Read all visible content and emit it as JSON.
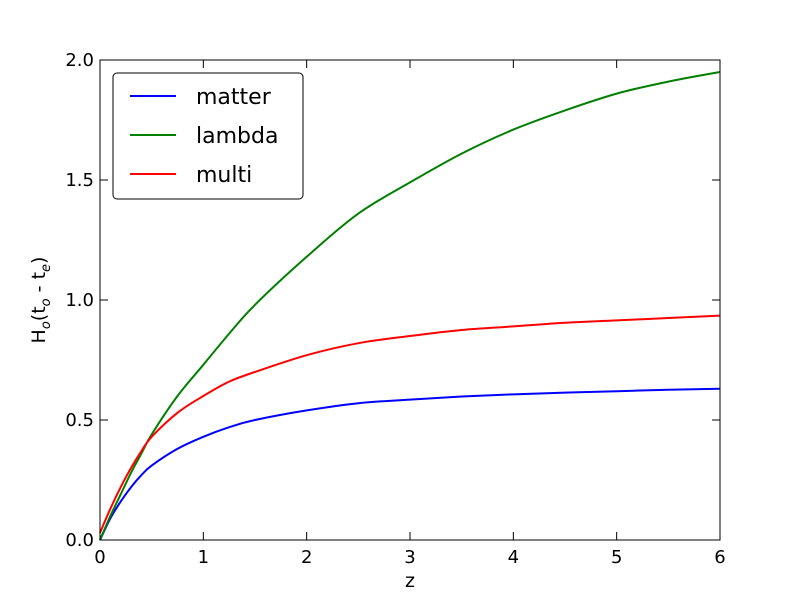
{
  "chart_data": {
    "type": "line",
    "title": "",
    "xlabel": "z",
    "ylabel": {
      "main": "H",
      "sub_main": "o",
      "open": "(t",
      "sub_1": "o",
      "mid": " - t",
      "sub_2": "e",
      "close": ")"
    },
    "xlim": [
      0,
      6
    ],
    "ylim": [
      0,
      2.0
    ],
    "xticks": [
      0,
      1,
      2,
      3,
      4,
      5,
      6
    ],
    "xtick_labels": [
      "0",
      "1",
      "2",
      "3",
      "4",
      "5",
      "6"
    ],
    "yticks": [
      0,
      0.5,
      1.0,
      1.5,
      2.0
    ],
    "ytick_labels": [
      "0.0",
      "0.5",
      "1.0",
      "1.5",
      "2.0"
    ],
    "grid": false,
    "legend_position": "top-left",
    "x": [
      0,
      0.1,
      0.2,
      0.3,
      0.4,
      0.5,
      0.75,
      1,
      1.25,
      1.5,
      2,
      2.5,
      3,
      3.5,
      4,
      4.5,
      5,
      5.5,
      6
    ],
    "series": [
      {
        "name": "matter",
        "color": "#0000ff",
        "values": [
          0,
          0.09,
          0.16,
          0.22,
          0.27,
          0.31,
          0.38,
          0.43,
          0.47,
          0.5,
          0.54,
          0.57,
          0.585,
          0.598,
          0.607,
          0.614,
          0.62,
          0.626,
          0.63
        ]
      },
      {
        "name": "lambda",
        "color": "#008000",
        "values": [
          0,
          0.1,
          0.19,
          0.28,
          0.36,
          0.44,
          0.6,
          0.73,
          0.86,
          0.98,
          1.18,
          1.36,
          1.49,
          1.61,
          1.71,
          1.79,
          1.86,
          1.91,
          1.95
        ]
      },
      {
        "name": "multi",
        "color": "#ff0000",
        "values": [
          0.03,
          0.13,
          0.22,
          0.3,
          0.37,
          0.43,
          0.53,
          0.6,
          0.66,
          0.7,
          0.77,
          0.82,
          0.85,
          0.875,
          0.89,
          0.905,
          0.915,
          0.925,
          0.935
        ]
      }
    ]
  }
}
